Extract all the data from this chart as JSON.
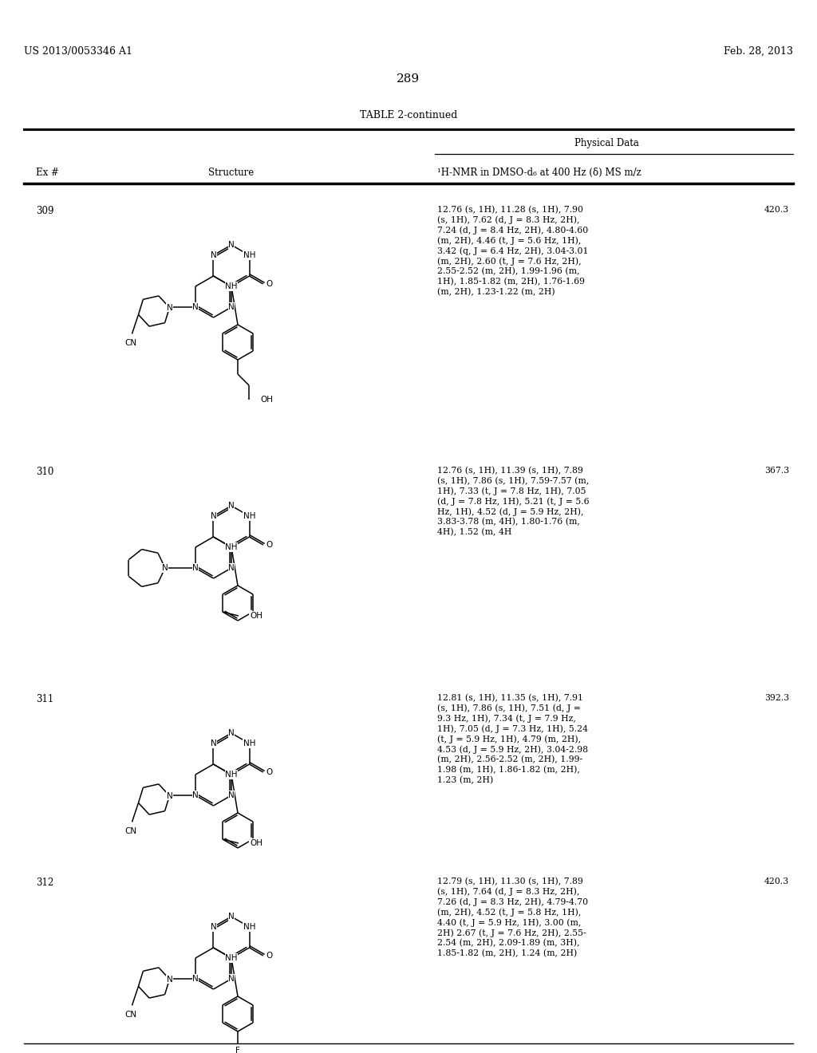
{
  "page_number": "289",
  "patent_number": "US 2013/0053346 A1",
  "patent_date": "Feb. 28, 2013",
  "table_title": "TABLE 2-continued",
  "header_col1": "Ex #",
  "header_col2": "Structure",
  "header_col3": "¹H-NMR in DMSO-d₆ at 400 Hz (δ) MS m/z",
  "physical_data_label": "Physical Data",
  "rows": [
    {
      "ex_num": "309",
      "nmr_lines": [
        "12.76 (s, 1H), 11.28 (s, 1H), 7.90",
        "(s, 1H), 7.62 (d, J = 8.3 Hz, 2H),",
        "7.24 (d, J = 8.4 Hz, 2H), 4.80-4.60",
        "(m, 2H), 4.46 (t, J = 5.6 Hz, 1H),",
        "3.42 (q, J = 6.4 Hz, 2H), 3.04-3.01",
        "(m, 2H), 2.60 (t, J = 7.6 Hz, 2H),",
        "2.55-2.52 (m, 2H), 1.99-1.96 (m,",
        "1H), 1.85-1.82 (m, 2H), 1.76-1.69",
        "(m, 2H), 1.23-1.22 (m, 2H)"
      ],
      "ms": "420.3"
    },
    {
      "ex_num": "310",
      "nmr_lines": [
        "12.76 (s, 1H), 11.39 (s, 1H), 7.89",
        "(s, 1H), 7.86 (s, 1H), 7.59-7.57 (m,",
        "1H), 7.33 (t, J = 7.8 Hz, 1H), 7.05",
        "(d, J = 7.8 Hz, 1H), 5.21 (t, J = 5.6",
        "Hz, 1H), 4.52 (d, J = 5.9 Hz, 2H),",
        "3.83-3.78 (m, 4H), 1.80-1.76 (m,",
        "4H), 1.52 (m, 4H"
      ],
      "ms": "367.3"
    },
    {
      "ex_num": "311",
      "nmr_lines": [
        "12.81 (s, 1H), 11.35 (s, 1H), 7.91",
        "(s, 1H), 7.86 (s, 1H), 7.51 (d, J =",
        "9.3 Hz, 1H), 7.34 (t, J = 7.9 Hz,",
        "1H), 7.05 (d, J = 7.3 Hz, 1H), 5.24",
        "(t, J = 5.9 Hz, 1H), 4.79 (m, 2H),",
        "4.53 (d, J = 5.9 Hz, 2H), 3.04-2.98",
        "(m, 2H), 2.56-2.52 (m, 2H), 1.99-",
        "1.98 (m, 1H), 1.86-1.82 (m, 2H),",
        "1.23 (m, 2H)"
      ],
      "ms": "392.3"
    },
    {
      "ex_num": "312",
      "nmr_lines": [
        "12.79 (s, 1H), 11.30 (s, 1H), 7.89",
        "(s, 1H), 7.64 (d, J = 8.3 Hz, 2H),",
        "7.26 (d, J = 8.3 Hz, 2H), 4.79-4.70",
        "(m, 2H), 4.52 (t, J = 5.8 Hz, 1H),",
        "4.40 (t, J = 5.9 Hz, 1H), 3.00 (m,",
        "2H) 2.67 (t, J = 7.6 Hz, 2H), 2.55-",
        "2.54 (m, 2H), 2.09-1.89 (m, 3H),",
        "1.85-1.82 (m, 2H), 1.24 (m, 2H)"
      ],
      "ms": "420.3"
    }
  ]
}
